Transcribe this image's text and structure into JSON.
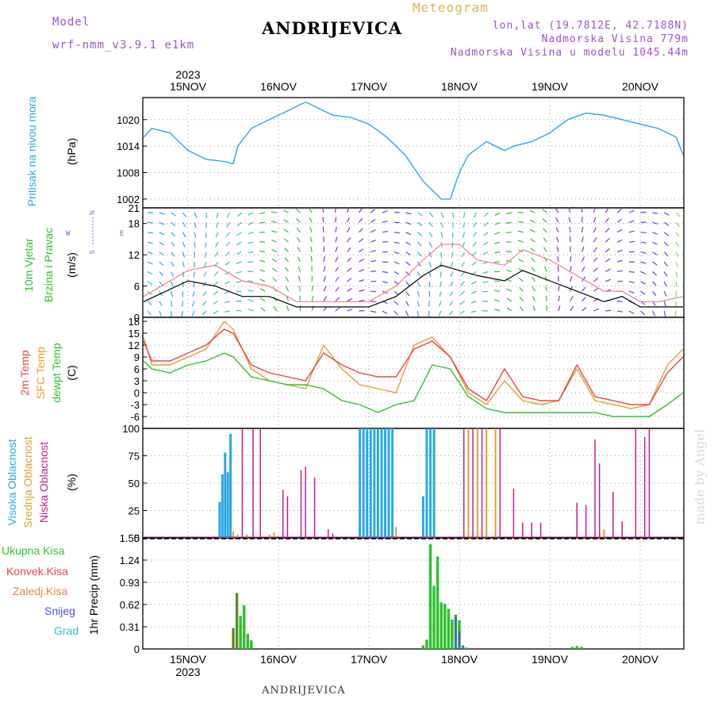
{
  "header": {
    "model_label": "Model",
    "model_name": "wrf-nmm_v3.9.1 e1km",
    "meteogram_label": "Meteogram",
    "title": "ANDRIJEVICA",
    "lonlat": "lon,lat (19.7812E, 42.7188N)",
    "altitude": "Nadmorska Visina 779m",
    "model_altitude": "Nadmorska Visina u modelu 1045.44m"
  },
  "footer_label": "ANDRIJEVICA",
  "made_by": "made by Angel",
  "year": "2023",
  "days": [
    "15NOV",
    "16NOV",
    "17NOV",
    "18NOV",
    "19NOV",
    "20NOV"
  ],
  "panels": {
    "pressure": {
      "label": "Pritisak na nivou mora",
      "unit": "(hPa)"
    },
    "wind": {
      "label_a": "10m Vjetar",
      "label_b": "Brzina i Pravac",
      "unit": "(m/s)",
      "dir_n": "N",
      "dir_s": "S",
      "dir_w": "W",
      "dir_e": "E"
    },
    "temp": {
      "label_a": "2m Temp",
      "label_b": "SFC Temp",
      "label_c": "dewpt Temp",
      "unit": "(C)"
    },
    "cloud": {
      "label_a": "Visoka Oblacnost",
      "label_b": "Srednja Oblacnost",
      "label_c": "Niska Oblacnost",
      "unit": "(%)"
    },
    "precip": {
      "label": "1hr Precip (mm)",
      "legend": [
        "Ukupna Kisa",
        "Konvek.Kisa",
        "Zaledj.Kisa",
        "Snijeg",
        "Grad"
      ]
    }
  },
  "colors": {
    "pressure": "#2aa8e8",
    "t2m": "#f04040",
    "sfc": "#e0a030",
    "dewpt": "#30c030",
    "high_cloud": "#2aa8e8",
    "mid_cloud": "#e0a030",
    "low_cloud": "#c0208a",
    "rain": "#30c030",
    "conv": "#f04040",
    "frz": "#f08040",
    "snow": "#5050e0",
    "grad": "#30c0c0"
  },
  "chart_data": [
    {
      "type": "line",
      "title": "Pritisak na nivou mora",
      "ylabel": "(hPa)",
      "ylim": [
        1000,
        1025
      ],
      "yticks": [
        "1002",
        "1008",
        "1014",
        "1020"
      ],
      "x_unit": "days from 15NOV 00UTC",
      "series": [
        {
          "name": "Pritisak na nivou mora",
          "x": [
            -0.5,
            -0.4,
            -0.2,
            0,
            0.2,
            0.4,
            0.5,
            0.55,
            0.7,
            0.9,
            1.0,
            1.1,
            1.3,
            1.4,
            1.6,
            1.8,
            2.0,
            2.2,
            2.4,
            2.6,
            2.8,
            2.9,
            3.0,
            3.1,
            3.3,
            3.5,
            3.6,
            3.8,
            4.0,
            4.2,
            4.4,
            4.6,
            4.8,
            5.0,
            5.2,
            5.4,
            5.5
          ],
          "y": [
            1016,
            1018,
            1017,
            1013,
            1011,
            1010.5,
            1010,
            1014,
            1018,
            1020,
            1021,
            1022,
            1024,
            1023,
            1021,
            1020.5,
            1019,
            1016,
            1012,
            1006,
            1002,
            1002,
            1008,
            1012,
            1015,
            1013,
            1014,
            1015,
            1017,
            1020,
            1021.5,
            1021,
            1020,
            1019,
            1018,
            1016,
            1012
          ]
        }
      ]
    },
    {
      "type": "line",
      "title": "10m Vjetar Brzina i Pravac",
      "ylabel": "(m/s)",
      "ylim": [
        0,
        21
      ],
      "yticks": [
        "0",
        "6",
        "12",
        "18",
        "21"
      ],
      "series": [
        {
          "name": "speed",
          "x": [
            -0.5,
            0,
            0.3,
            0.6,
            0.9,
            1.2,
            1.5,
            1.8,
            2.0,
            2.3,
            2.6,
            2.8,
            3.0,
            3.2,
            3.5,
            3.7,
            4.0,
            4.3,
            4.6,
            4.8,
            5.0,
            5.2,
            5.5
          ],
          "y": [
            3,
            7,
            6,
            4,
            4,
            2,
            2,
            2,
            2,
            4,
            8,
            10,
            9,
            8,
            7,
            9,
            7,
            5,
            3,
            4,
            2,
            2,
            2
          ]
        },
        {
          "name": "gust",
          "x": [
            -0.5,
            0,
            0.3,
            0.6,
            0.9,
            1.2,
            1.5,
            1.8,
            2.0,
            2.3,
            2.6,
            2.8,
            3.0,
            3.2,
            3.5,
            3.7,
            4.0,
            4.3,
            4.6,
            4.8,
            5.0,
            5.2,
            5.5
          ],
          "y": [
            4,
            9,
            10,
            7,
            6,
            3,
            3,
            3,
            3,
            6,
            11,
            14,
            14,
            11,
            10,
            13,
            11,
            8,
            5,
            5,
            3,
            3,
            4
          ]
        }
      ]
    },
    {
      "type": "line",
      "title": "2m Temp / SFC Temp / dewpt Temp",
      "ylabel": "(C)",
      "ylim": [
        -9,
        19
      ],
      "yticks": [
        "-6",
        "-3",
        "0",
        "3",
        "6",
        "9",
        "12",
        "15",
        "18"
      ],
      "series": [
        {
          "name": "2m Temp",
          "x": [
            -0.5,
            -0.4,
            -0.2,
            0,
            0.2,
            0.4,
            0.5,
            0.7,
            0.9,
            1.1,
            1.3,
            1.5,
            1.7,
            1.9,
            2.1,
            2.3,
            2.5,
            2.7,
            2.9,
            3.1,
            3.3,
            3.5,
            3.7,
            3.9,
            4.1,
            4.3,
            4.5,
            4.7,
            4.9,
            5.1,
            5.3,
            5.5
          ],
          "y": [
            13,
            8,
            8,
            10,
            12,
            16,
            15,
            7,
            5,
            4,
            3,
            10,
            7,
            5,
            4,
            4,
            11,
            13,
            9,
            1,
            -2,
            6,
            -1,
            -2,
            -2,
            7,
            -1,
            -2,
            -3,
            -3,
            5,
            9
          ]
        },
        {
          "name": "SFC Temp",
          "x": [
            -0.5,
            -0.4,
            -0.2,
            0,
            0.2,
            0.4,
            0.5,
            0.7,
            0.9,
            1.1,
            1.3,
            1.5,
            1.7,
            1.9,
            2.1,
            2.3,
            2.5,
            2.7,
            2.9,
            3.1,
            3.3,
            3.5,
            3.7,
            3.9,
            4.1,
            4.3,
            4.5,
            4.7,
            4.9,
            5.1,
            5.3,
            5.5
          ],
          "y": [
            14,
            7,
            7,
            9,
            11,
            18,
            16,
            6,
            3,
            2,
            1,
            12,
            6,
            2,
            1,
            0,
            12,
            14,
            9,
            0,
            -3,
            3,
            -2,
            -3,
            -2,
            6,
            -2,
            -3,
            -4,
            -3,
            7,
            11
          ]
        },
        {
          "name": "dewpt Temp",
          "x": [
            -0.5,
            -0.4,
            -0.2,
            0,
            0.2,
            0.4,
            0.5,
            0.7,
            0.9,
            1.1,
            1.3,
            1.5,
            1.7,
            1.9,
            2.1,
            2.3,
            2.5,
            2.7,
            2.9,
            3.1,
            3.3,
            3.5,
            3.7,
            3.9,
            4.1,
            4.3,
            4.5,
            4.7,
            4.9,
            5.1,
            5.3,
            5.5
          ],
          "y": [
            8,
            6,
            5,
            7,
            8,
            10,
            9,
            4,
            3,
            2,
            2,
            1,
            -2,
            -3,
            -5,
            -3,
            -2,
            7,
            6,
            -1,
            -4,
            -5,
            -5,
            -5,
            -5,
            -5,
            -5,
            -6,
            -6,
            -6,
            -3,
            0
          ]
        }
      ]
    },
    {
      "type": "bar",
      "title": "Oblacnost",
      "ylabel": "(%)",
      "ylim": [
        0,
        100
      ],
      "yticks": [
        "0",
        "25",
        "50",
        "75",
        "100"
      ],
      "series": [
        {
          "name": "Visoka Oblacnost",
          "x": [
            0.35,
            0.38,
            0.41,
            0.44,
            0.47,
            1.9,
            1.94,
            1.98,
            2.02,
            2.06,
            2.1,
            2.14,
            2.18,
            2.22,
            2.26,
            2.6,
            2.64,
            2.68,
            2.72
          ],
          "y": [
            33,
            58,
            78,
            60,
            95,
            100,
            100,
            100,
            100,
            100,
            100,
            100,
            100,
            100,
            100,
            38,
            100,
            100,
            100
          ]
        },
        {
          "name": "Srednja Oblacnost",
          "x": [
            0.5,
            0.55,
            0.65,
            0.9,
            0.95,
            2.3,
            3.1,
            3.2,
            3.3,
            3.4,
            4.6
          ],
          "y": [
            6,
            3,
            3,
            3,
            5,
            10,
            100,
            100,
            100,
            100,
            8
          ]
        },
        {
          "name": "Niska Oblacnost",
          "x": [
            0.6,
            0.72,
            0.8,
            1.05,
            1.1,
            1.25,
            1.3,
            1.4,
            1.55,
            1.6,
            3.05,
            3.15,
            3.25,
            3.45,
            3.6,
            3.7,
            3.8,
            3.9,
            4.3,
            4.4,
            4.5,
            4.55,
            4.7,
            4.8,
            4.95,
            5.05,
            5.1
          ],
          "y": [
            100,
            100,
            100,
            44,
            38,
            62,
            65,
            55,
            8,
            4,
            100,
            100,
            100,
            100,
            45,
            14,
            14,
            14,
            32,
            30,
            90,
            68,
            42,
            15,
            100,
            92,
            100
          ]
        }
      ]
    },
    {
      "type": "bar",
      "title": "1hr Precip",
      "ylabel": "1hr Precip (mm)",
      "ylim": [
        0,
        1.55
      ],
      "yticks": [
        "0",
        "0.31",
        "0.62",
        "0.93",
        "1.24",
        "1.55"
      ],
      "series": [
        {
          "name": "Ukupna Kisa",
          "x": [
            0.5,
            0.54,
            0.58,
            0.62,
            0.66,
            0.7,
            2.6,
            2.64,
            2.68,
            2.72,
            2.76,
            2.8,
            2.84,
            2.88,
            2.92,
            2.96,
            3.0,
            3.04,
            3.08,
            4.25,
            4.3,
            4.35
          ],
          "y": [
            0.29,
            0.78,
            0.46,
            0.61,
            0.21,
            0.12,
            0.05,
            0.13,
            1.46,
            0.88,
            1.29,
            0.65,
            0.63,
            0.56,
            0.41,
            0.48,
            0.4,
            0.05,
            0.02,
            0.03,
            0.04,
            0.03
          ]
        },
        {
          "name": "Snijeg",
          "x": [
            2.96,
            3.0,
            3.04
          ],
          "y": [
            0.45,
            0.25,
            0.04
          ]
        },
        {
          "name": "Zaledj.Kisa",
          "x": [
            0.5,
            0.54
          ],
          "y": [
            0.29,
            0.78
          ]
        }
      ]
    }
  ]
}
